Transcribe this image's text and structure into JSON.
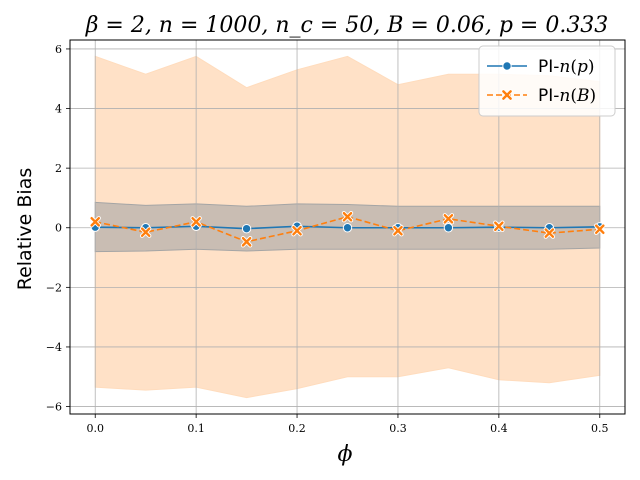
{
  "chart_data": {
    "type": "line",
    "title": "β = 2, n = 1000, n_c = 50, B = 0.06, p = 0.333",
    "xlabel": "ϕ",
    "ylabel": "Relative Bias",
    "xlim": [
      -0.025,
      0.525
    ],
    "ylim": [
      -6.25,
      6.3
    ],
    "x_ticks": [
      0.0,
      0.1,
      0.2,
      0.3,
      0.4,
      0.5
    ],
    "x_tick_labels": [
      "0.0",
      "0.1",
      "0.2",
      "0.3",
      "0.4",
      "0.5"
    ],
    "y_ticks": [
      -6,
      -4,
      -2,
      0,
      2,
      4,
      6
    ],
    "y_tick_labels": [
      "−6",
      "−4",
      "−2",
      "0",
      "2",
      "4",
      "6"
    ],
    "grid": true,
    "legend_position": "top-right",
    "x": [
      0.0,
      0.05,
      0.1,
      0.15,
      0.2,
      0.25,
      0.3,
      0.35,
      0.4,
      0.45,
      0.5
    ],
    "series": [
      {
        "name": "PI-n(p)",
        "color": "#1f77b4",
        "marker": "circle",
        "linestyle": "solid",
        "values": [
          0.02,
          0.0,
          0.05,
          -0.03,
          0.05,
          0.0,
          0.0,
          0.0,
          0.02,
          0.0,
          0.03
        ],
        "band_upper": [
          0.85,
          0.75,
          0.8,
          0.72,
          0.8,
          0.78,
          0.72,
          0.72,
          0.72,
          0.72,
          0.72
        ],
        "band_lower": [
          -0.8,
          -0.78,
          -0.72,
          -0.78,
          -0.72,
          -0.72,
          -0.72,
          -0.72,
          -0.72,
          -0.72,
          -0.68
        ],
        "band_color": "#a5a5a5"
      },
      {
        "name": "PI-n(B)",
        "color": "#ff7f0e",
        "marker": "x",
        "linestyle": "dashed",
        "values": [
          0.2,
          -0.15,
          0.2,
          -0.47,
          -0.1,
          0.37,
          -0.1,
          0.3,
          0.05,
          -0.18,
          -0.05
        ],
        "band_upper": [
          5.75,
          5.15,
          5.75,
          4.7,
          5.3,
          5.75,
          4.8,
          5.15,
          5.15,
          5.1,
          4.9
        ],
        "band_lower": [
          -5.35,
          -5.45,
          -5.35,
          -5.7,
          -5.4,
          -5.0,
          -5.0,
          -4.7,
          -5.1,
          -5.2,
          -4.95
        ],
        "band_color": "#ffdcbd"
      }
    ],
    "legend": [
      {
        "prefix": "PI-",
        "var": "n",
        "arg": "p"
      },
      {
        "prefix": "PI-",
        "var": "n",
        "arg": "B"
      }
    ]
  }
}
